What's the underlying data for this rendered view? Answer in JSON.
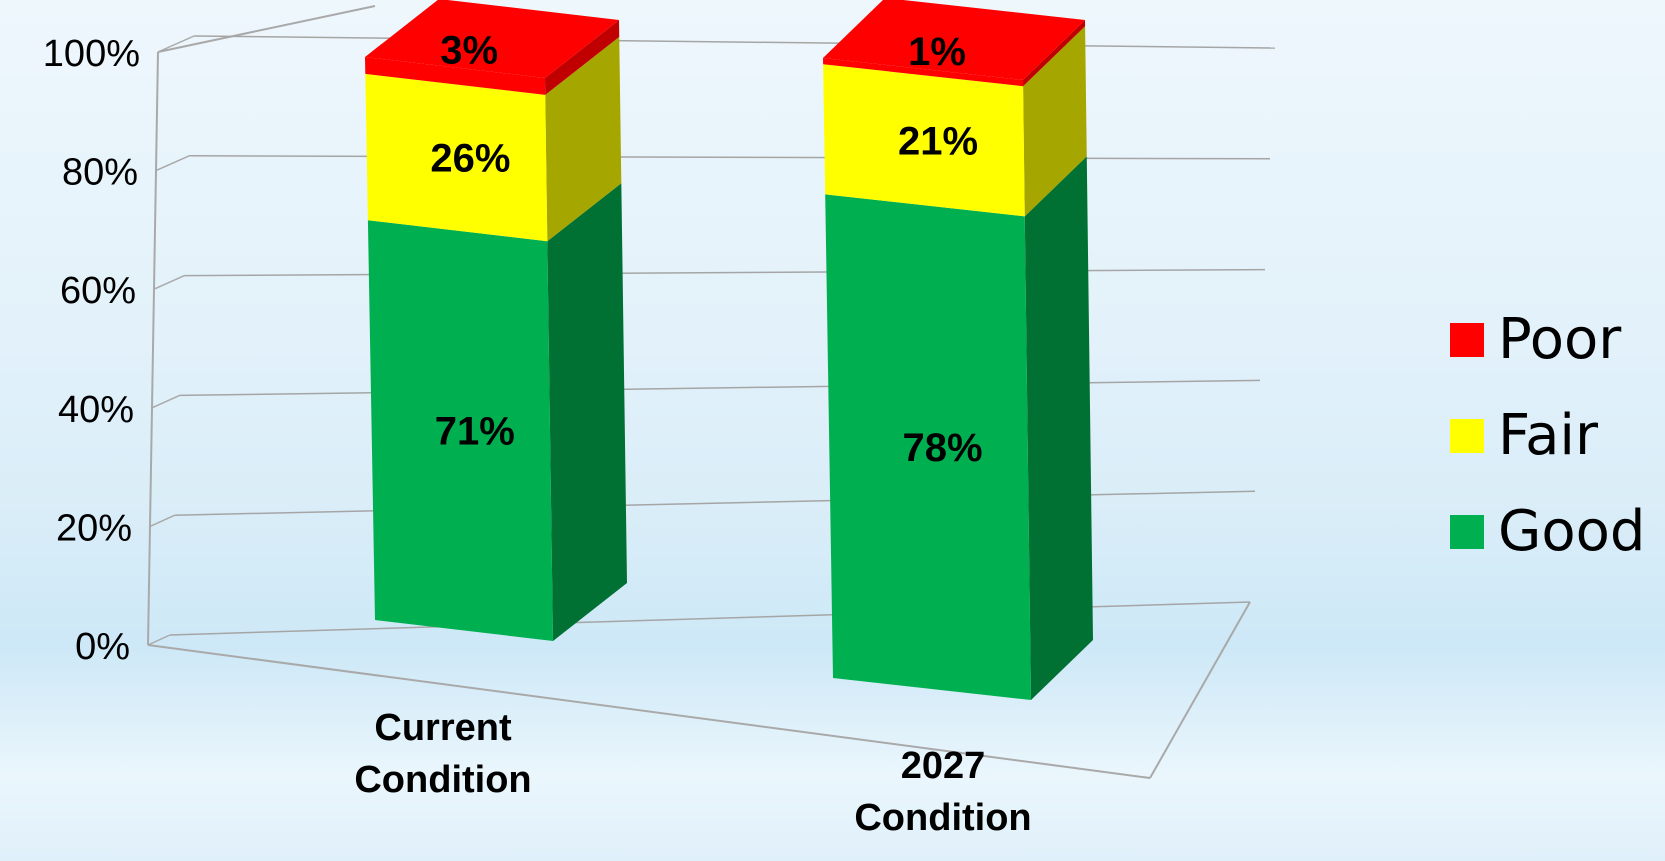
{
  "chart_data": {
    "type": "bar",
    "stacked": true,
    "three_d": true,
    "categories": [
      [
        "Current",
        "Condition"
      ],
      [
        "2027",
        "Condition"
      ]
    ],
    "series": [
      {
        "name": "Good",
        "values": [
          71,
          78
        ],
        "labels": [
          "71%",
          "78%"
        ],
        "color": "#00b050",
        "side_color": "#007033"
      },
      {
        "name": "Fair",
        "values": [
          26,
          21
        ],
        "labels": [
          "26%",
          "21%"
        ],
        "color": "#ffff00",
        "side_color": "#a6a600"
      },
      {
        "name": "Poor",
        "values": [
          3,
          1
        ],
        "labels": [
          "3%",
          "1%"
        ],
        "color": "#ff0000",
        "side_color": "#c00000"
      }
    ],
    "y_ticks": [
      "0%",
      "20%",
      "40%",
      "60%",
      "80%",
      "100%"
    ],
    "ylim": [
      0,
      100
    ],
    "grid": true,
    "legend_position": "right",
    "legend_order": [
      "Poor",
      "Fair",
      "Good"
    ]
  }
}
